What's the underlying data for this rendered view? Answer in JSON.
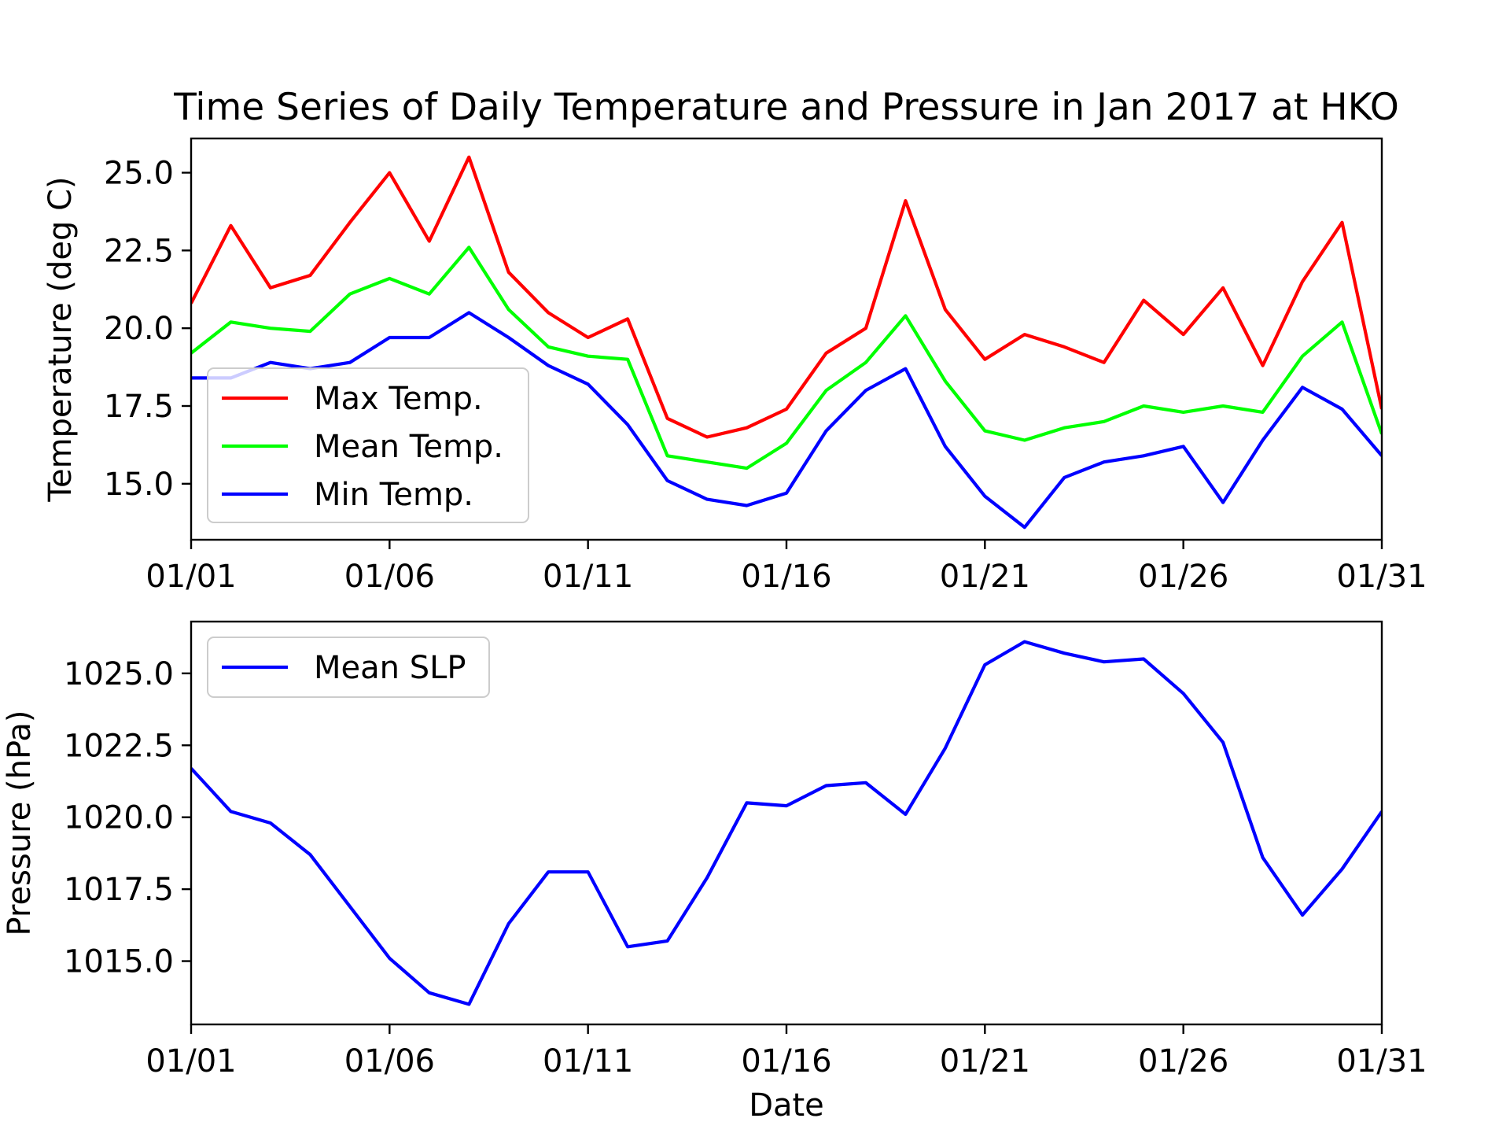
{
  "chart_data": [
    {
      "type": "line",
      "title": "Time Series of Daily Temperature and Pressure in Jan 2017 at HKO",
      "xlabel": "",
      "ylabel": "Temperature (deg C)",
      "x": [
        "01/01",
        "01/02",
        "01/03",
        "01/04",
        "01/05",
        "01/06",
        "01/07",
        "01/08",
        "01/09",
        "01/10",
        "01/11",
        "01/12",
        "01/13",
        "01/14",
        "01/15",
        "01/16",
        "01/17",
        "01/18",
        "01/19",
        "01/20",
        "01/21",
        "01/22",
        "01/23",
        "01/24",
        "01/25",
        "01/26",
        "01/27",
        "01/28",
        "01/29",
        "01/30",
        "01/31"
      ],
      "xticks": [
        "01/01",
        "01/06",
        "01/11",
        "01/16",
        "01/21",
        "01/26",
        "01/31"
      ],
      "ylim": [
        13.2,
        26.1
      ],
      "yticks": [
        "15.0",
        "17.5",
        "20.0",
        "22.5",
        "25.0"
      ],
      "legend_position": "lower-left",
      "grid": false,
      "series": [
        {
          "name": "Max Temp.",
          "color": "#ff0000",
          "values": [
            20.8,
            23.3,
            21.3,
            21.7,
            23.4,
            25.0,
            22.8,
            25.5,
            21.8,
            20.5,
            19.7,
            20.3,
            17.1,
            16.5,
            16.8,
            17.4,
            19.2,
            20.0,
            24.1,
            20.6,
            19.0,
            19.8,
            19.4,
            18.9,
            20.9,
            19.8,
            21.3,
            18.8,
            21.5,
            23.4,
            17.4
          ]
        },
        {
          "name": "Mean Temp.",
          "color": "#00ff00",
          "values": [
            19.2,
            20.2,
            20.0,
            19.9,
            21.1,
            21.6,
            21.1,
            22.6,
            20.6,
            19.4,
            19.1,
            19.0,
            15.9,
            15.7,
            15.5,
            16.3,
            18.0,
            18.9,
            20.4,
            18.3,
            16.7,
            16.4,
            16.8,
            17.0,
            17.5,
            17.3,
            17.5,
            17.3,
            19.1,
            20.2,
            16.6
          ]
        },
        {
          "name": "Min Temp.",
          "color": "#0000ff",
          "values": [
            18.4,
            18.4,
            18.9,
            18.7,
            18.9,
            19.7,
            19.7,
            20.5,
            19.7,
            18.8,
            18.2,
            16.9,
            15.1,
            14.5,
            14.3,
            14.7,
            16.7,
            18.0,
            18.7,
            16.2,
            14.6,
            13.6,
            15.2,
            15.7,
            15.9,
            16.2,
            14.4,
            16.4,
            18.1,
            17.4,
            15.9
          ]
        }
      ]
    },
    {
      "type": "line",
      "title": "",
      "xlabel": "Date",
      "ylabel": "Pressure (hPa)",
      "x": [
        "01/01",
        "01/02",
        "01/03",
        "01/04",
        "01/05",
        "01/06",
        "01/07",
        "01/08",
        "01/09",
        "01/10",
        "01/11",
        "01/12",
        "01/13",
        "01/14",
        "01/15",
        "01/16",
        "01/17",
        "01/18",
        "01/19",
        "01/20",
        "01/21",
        "01/22",
        "01/23",
        "01/24",
        "01/25",
        "01/26",
        "01/27",
        "01/28",
        "01/29",
        "01/30",
        "01/31"
      ],
      "xticks": [
        "01/01",
        "01/06",
        "01/11",
        "01/16",
        "01/21",
        "01/26",
        "01/31"
      ],
      "ylim": [
        1012.8,
        1026.8
      ],
      "yticks": [
        "1015.0",
        "1017.5",
        "1020.0",
        "1022.5",
        "1025.0"
      ],
      "legend_position": "upper-left",
      "grid": false,
      "series": [
        {
          "name": "Mean SLP",
          "color": "#0000ff",
          "values": [
            1021.7,
            1020.2,
            1019.8,
            1018.7,
            1016.9,
            1015.1,
            1013.9,
            1013.5,
            1016.3,
            1018.1,
            1018.1,
            1015.5,
            1015.7,
            1017.9,
            1020.5,
            1020.4,
            1021.1,
            1021.2,
            1020.1,
            1022.4,
            1025.3,
            1026.1,
            1025.7,
            1025.4,
            1025.5,
            1024.3,
            1022.6,
            1018.6,
            1016.6,
            1018.2,
            1020.2
          ]
        }
      ]
    }
  ]
}
